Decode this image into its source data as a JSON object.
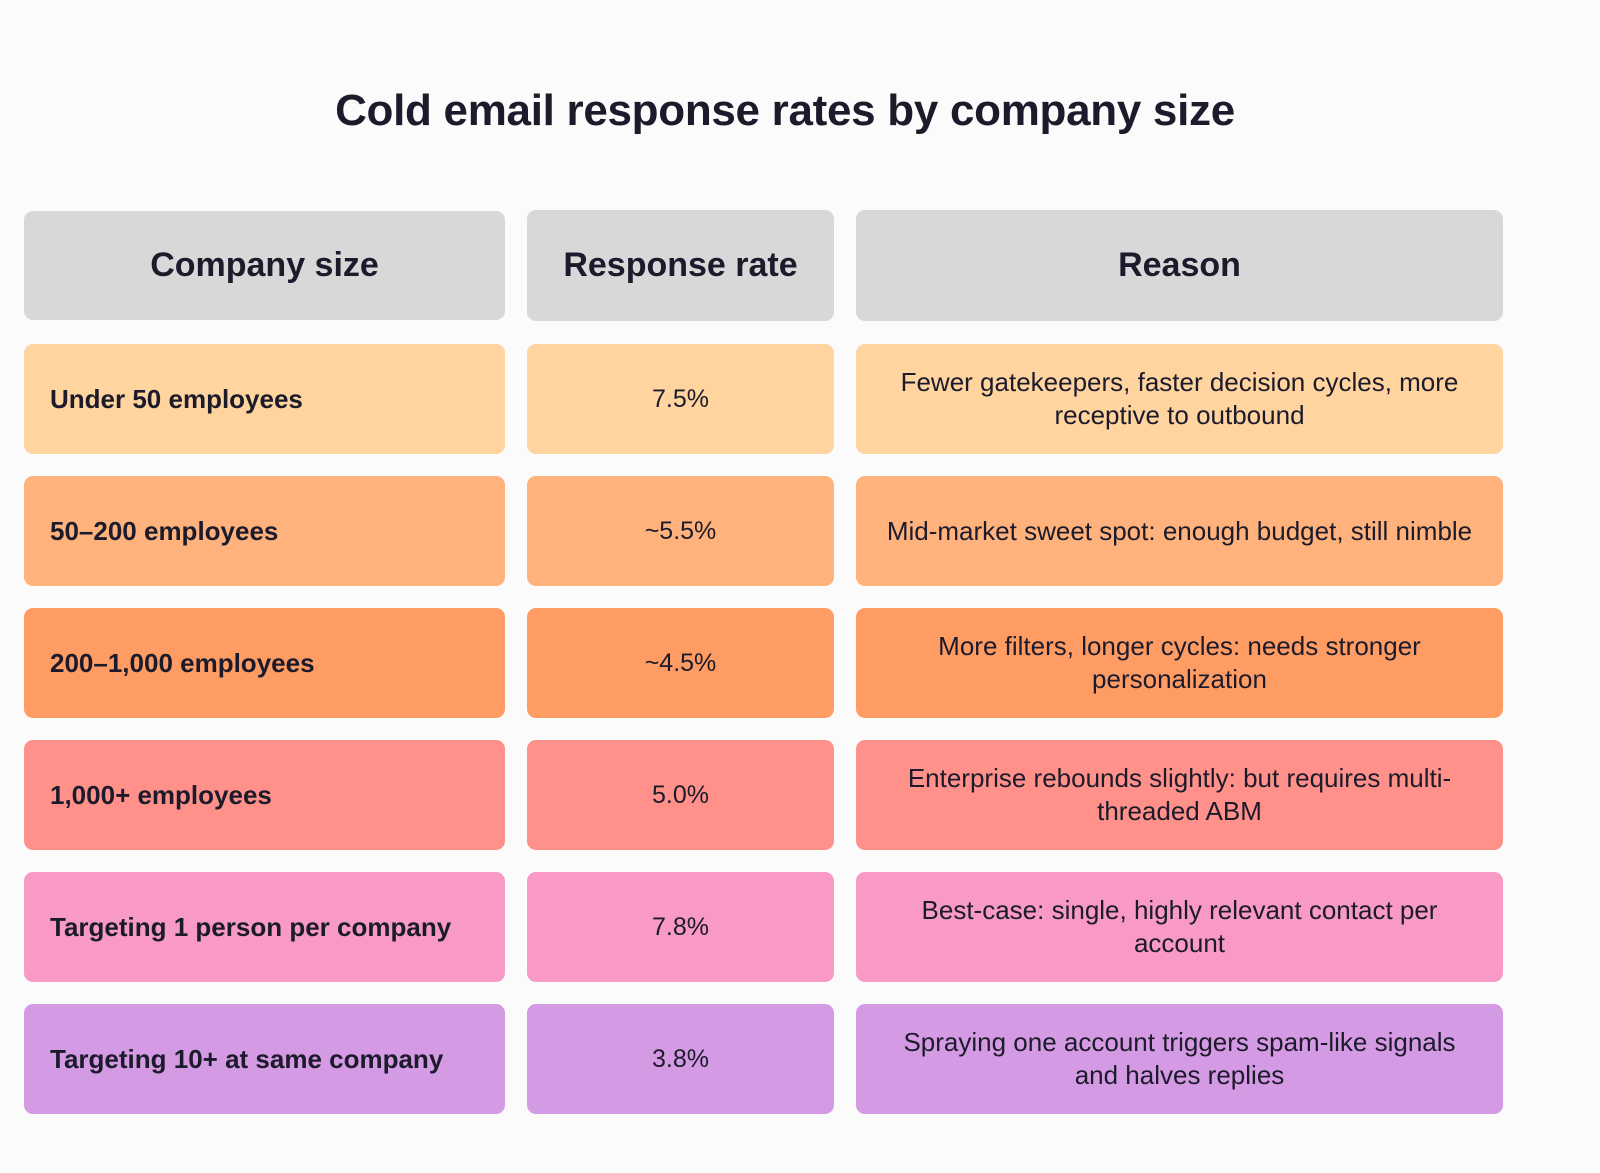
{
  "chart_data": {
    "type": "table",
    "title": "Cold email response rates by company size",
    "columns": [
      "Company size",
      "Response rate",
      "Reason"
    ],
    "rows": [
      {
        "size": "Under 50 employees",
        "rate": "7.5%",
        "reason": "Fewer gatekeepers, faster decision cycles, more receptive to outbound",
        "color": "#ffd49f"
      },
      {
        "size": "50–200 employees",
        "rate": "~5.5%",
        "reason": "Mid-market sweet spot: enough budget, still nimble",
        "color": "#ffb27b"
      },
      {
        "size": "200–1,000 employees",
        "rate": "~4.5%",
        "reason": "More filters, longer cycles: needs stronger personalization",
        "color": "#ff9c64"
      },
      {
        "size": "1,000+ employees",
        "rate": "5.0%",
        "reason": "Enterprise rebounds slightly: but requires multi-threaded ABM",
        "color": "#ff918a"
      },
      {
        "size": "Targeting 1 person per company",
        "rate": "7.8%",
        "reason": "Best-case: single, highly relevant contact per account",
        "color": "#f89ac5"
      },
      {
        "size": "Targeting 10+ at same company",
        "rate": "3.8%",
        "reason": "Spraying one account triggers spam-like signals and halves replies",
        "color": "#d59ae4"
      }
    ],
    "header_color": "#d8d8d8"
  }
}
